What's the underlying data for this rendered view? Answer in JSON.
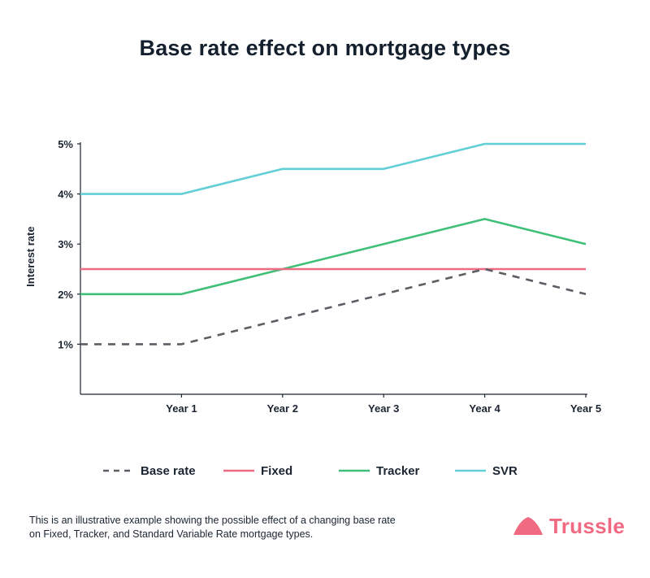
{
  "chart_data": {
    "type": "line",
    "title": "Base rate effect on mortgage types",
    "xlabel": "",
    "ylabel": "Interest rate",
    "categories": [
      "",
      "Year 1",
      "Year 2",
      "Year 3",
      "Year 4",
      "Year 5"
    ],
    "ylim": [
      0,
      5
    ],
    "yticks": [
      1,
      2,
      3,
      4,
      5
    ],
    "ytick_labels": [
      "1%",
      "2%",
      "3%",
      "4%",
      "5%"
    ],
    "series": [
      {
        "name": "Base rate",
        "color": "#5b5e63",
        "style": "dashed",
        "values": [
          1,
          1,
          1.5,
          2,
          2.5,
          2
        ]
      },
      {
        "name": "Fixed",
        "color": "#ee6b84",
        "style": "solid",
        "values": [
          2.5,
          2.5,
          2.5,
          2.5,
          2.5,
          2.5
        ]
      },
      {
        "name": "Tracker",
        "color": "#3fbf78",
        "style": "solid",
        "values": [
          2,
          2,
          2.5,
          3,
          3.5,
          3
        ]
      },
      {
        "name": "SVR",
        "color": "#62cfd6",
        "style": "solid",
        "values": [
          4,
          4,
          4.5,
          4.5,
          5,
          5
        ]
      }
    ],
    "legend_position": "bottom"
  },
  "caption": {
    "line1": "This is an illustrative example showing the possible effect of a changing base rate",
    "line2": "on Fixed, Tracker, and Standard Variable Rate mortgage types."
  },
  "brand": {
    "name": "Trussle",
    "color": "#f06a82"
  }
}
